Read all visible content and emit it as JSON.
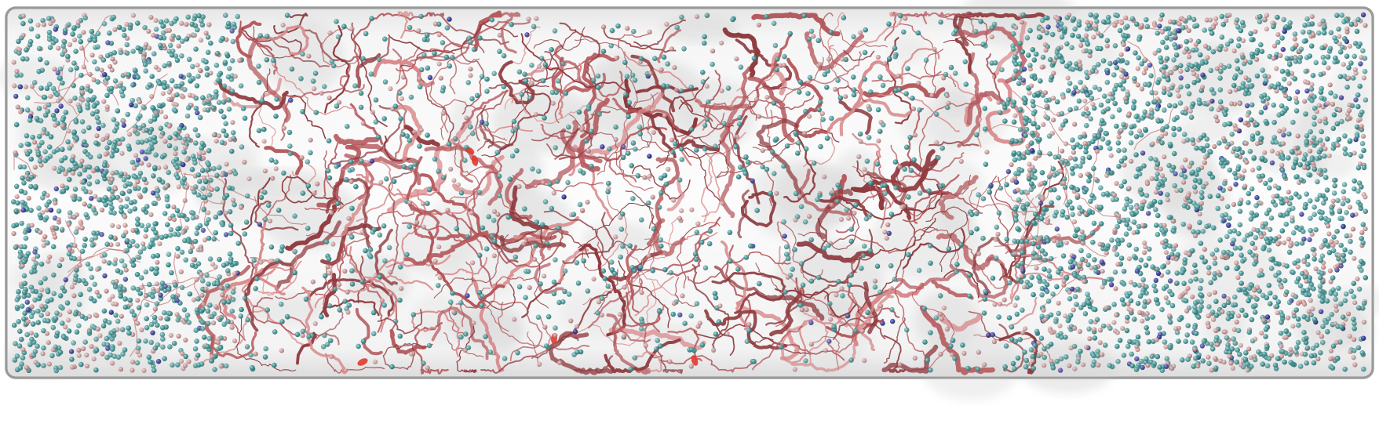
{
  "scene": {
    "description_kind": "molecular-dynamics-rendering",
    "components": [
      "simulation-box",
      "solvent-ions",
      "protein-condensate"
    ]
  },
  "palette": {
    "box_edge": "#8c8c8c",
    "box_fill": "#eeeeee",
    "box_inner": "#fafafa",
    "protein_dark": "#8e3a3e",
    "protein_mid": "#b4585c",
    "protein_light": "#d98a8c",
    "protein_highlight": "#e23a2e",
    "ion_teal": "#4f9a9a",
    "ion_teal_light": "#7fbcbc",
    "ion_pink": "#c99a9a",
    "ion_blue": "#3a3f9e"
  },
  "legend": {}
}
